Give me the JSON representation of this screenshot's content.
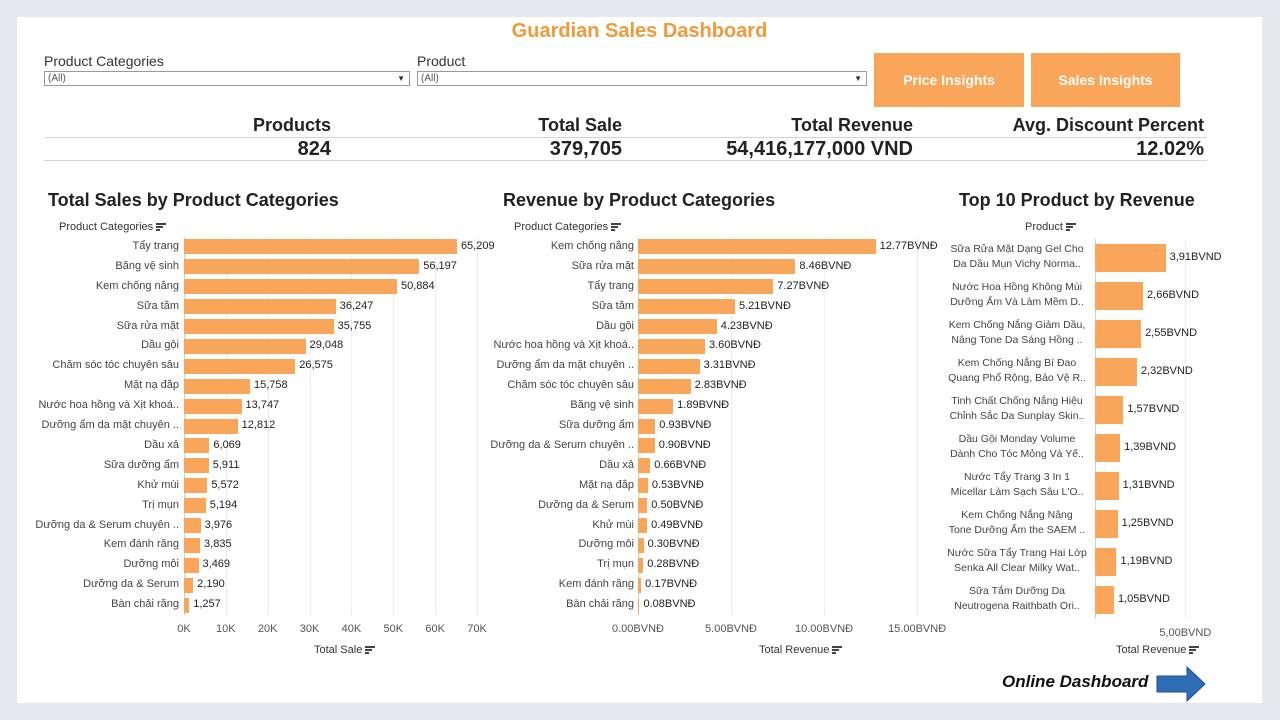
{
  "title": "Guardian Sales Dashboard",
  "filters": {
    "categories": {
      "label": "Product Categories",
      "value": "(All)"
    },
    "product": {
      "label": "Product",
      "value": "(All)"
    }
  },
  "buttons": {
    "price": "Price Insights",
    "sales": "Sales Insights"
  },
  "kpis": {
    "products": {
      "label": "Products",
      "value": "824"
    },
    "total_sale": {
      "label": "Total Sale",
      "value": "379,705"
    },
    "total_revenue": {
      "label": "Total Revenue",
      "value": "54,416,177,000 VND"
    },
    "avg_discount": {
      "label": "Avg. Discount Percent",
      "value": "12.02%"
    }
  },
  "footer": {
    "online_dashboard": "Online Dashboard"
  },
  "colors": {
    "accent": "#f19a3a",
    "bar": "#f9a65a",
    "arrow": "#2e6db5"
  },
  "icons": {
    "sort": "sort-icon",
    "dropdown": "chevron-down-icon",
    "arrow": "arrow-right-icon"
  },
  "chart_data": [
    {
      "type": "bar",
      "orientation": "horizontal",
      "title": "Total Sales by Product Categories",
      "category_header": "Product Categories",
      "xlabel": "Total Sale",
      "xlim": [
        0,
        70000
      ],
      "ticks": [
        0,
        10000,
        20000,
        30000,
        40000,
        50000,
        60000,
        70000
      ],
      "tick_labels": [
        "0K",
        "10K",
        "20K",
        "30K",
        "40K",
        "50K",
        "60K",
        "70K"
      ],
      "grid": true,
      "categories": [
        "Tẩy trang",
        "Băng vệ sinh",
        "Kem chống nắng",
        "Sữa tắm",
        "Sữa rửa mặt",
        "Dầu gội",
        "Chăm sóc tóc chuyên sâu",
        "Mặt nạ đắp",
        "Nước hoa hồng và Xịt khoá..",
        "Dưỡng ẩm da mặt chuyên ..",
        "Dầu xả",
        "Sữa dưỡng ẩm",
        "Khử mùi",
        "Trị mụn",
        "Dưỡng da & Serum chuyên ..",
        "Kem đánh răng",
        "Dưỡng môi",
        "Dưỡng da & Serum",
        "Bàn chải răng"
      ],
      "values": [
        65209,
        56197,
        50884,
        36247,
        35755,
        29048,
        26575,
        15758,
        13747,
        12812,
        6069,
        5911,
        5572,
        5194,
        3976,
        3835,
        3469,
        2190,
        1257
      ],
      "value_labels": [
        "65,209",
        "56,197",
        "50,884",
        "36,247",
        "35,755",
        "29,048",
        "26,575",
        "15,758",
        "13,747",
        "12,812",
        "6,069",
        "5,911",
        "5,572",
        "5,194",
        "3,976",
        "3,835",
        "3,469",
        "2,190",
        "1,257"
      ]
    },
    {
      "type": "bar",
      "orientation": "horizontal",
      "title": "Revenue by Product Categories",
      "category_header": "Product Categories",
      "xlabel": "Total Revenue",
      "xlim": [
        0,
        15.8
      ],
      "ticks": [
        0,
        5,
        10,
        15
      ],
      "tick_labels": [
        "0.00BVNĐ",
        "5.00BVNĐ",
        "10.00BVNĐ",
        "15.00BVNĐ"
      ],
      "grid": true,
      "categories": [
        "Kem chống nắng",
        "Sữa rửa mặt",
        "Tẩy trang",
        "Sữa tắm",
        "Dầu gội",
        "Nước hoa hồng và Xịt khoá..",
        "Dưỡng ẩm da mặt chuyên ..",
        "Chăm sóc tóc chuyên sâu",
        "Băng vệ sinh",
        "Sữa dưỡng ẩm",
        "Dưỡng da & Serum chuyên ..",
        "Dầu xả",
        "Mặt nạ đắp",
        "Dưỡng da & Serum",
        "Khử mùi",
        "Dưỡng môi",
        "Trị mụn",
        "Kem đánh răng",
        "Bàn chải răng"
      ],
      "values": [
        12.77,
        8.46,
        7.27,
        5.21,
        4.23,
        3.6,
        3.31,
        2.83,
        1.89,
        0.93,
        0.9,
        0.66,
        0.53,
        0.5,
        0.49,
        0.3,
        0.28,
        0.17,
        0.08
      ],
      "value_labels": [
        "12.77BVNĐ",
        "8.46BVNĐ",
        "7.27BVNĐ",
        "5.21BVNĐ",
        "4.23BVNĐ",
        "3.60BVNĐ",
        "3.31BVNĐ",
        "2.83BVNĐ",
        "1.89BVNĐ",
        "0.93BVNĐ",
        "0.90BVNĐ",
        "0.66BVNĐ",
        "0.53BVNĐ",
        "0.50BVNĐ",
        "0.49BVNĐ",
        "0.30BVNĐ",
        "0.28BVNĐ",
        "0.17BVNĐ",
        "0.08BVNĐ"
      ]
    },
    {
      "type": "bar",
      "orientation": "horizontal",
      "title": "Top 10 Product by Revenue",
      "category_header": "Product",
      "xlabel": "Total Revenue",
      "xlim": [
        0,
        6.2
      ],
      "ticks": [
        5
      ],
      "tick_labels": [
        "5,00BVND"
      ],
      "grid": true,
      "categories": [
        [
          "Sữa Rửa Mặt Dạng Gel Cho",
          "Da Dầu Mụn Vichy Norma.."
        ],
        [
          "Nước Hoa Hồng Không Mùi",
          "Dưỡng Ẩm Và Làm Mềm D.."
        ],
        [
          "Kem Chống Nắng Giảm Dầu,",
          "Nâng Tone Da Sáng Hồng .."
        ],
        [
          "Kem Chống Nắng Bí Đao",
          "Quang Phổ Rộng, Bảo Vệ R.."
        ],
        [
          "Tinh Chất Chống Nắng Hiệu",
          "Chỉnh Sắc Da Sunplay Skin.."
        ],
        [
          "Dầu Gội Monday Volume",
          "Dành Cho Tóc Mỏng Và Yế.."
        ],
        [
          "Nước Tẩy Trang 3 In 1",
          "Micellar Làm Sạch Sâu L'O.."
        ],
        [
          "Kem Chống Nắng Nâng",
          "Tone Dưỡng Ẩm the SAEM .."
        ],
        [
          "Nước Sữa Tẩy Trang Hai Lớp",
          "Senka All Clear Milky Wat.."
        ],
        [
          "Sữa Tắm Dưỡng Da",
          "Neutrogena Raithbath Ori.."
        ]
      ],
      "values": [
        3.91,
        2.66,
        2.55,
        2.32,
        1.57,
        1.39,
        1.31,
        1.25,
        1.19,
        1.05
      ],
      "value_labels": [
        "3,91BVND",
        "2,66BVND",
        "2,55BVND",
        "2,32BVND",
        "1,57BVND",
        "1,39BVND",
        "1,31BVND",
        "1,25BVND",
        "1,19BVND",
        "1,05BVND"
      ]
    }
  ]
}
